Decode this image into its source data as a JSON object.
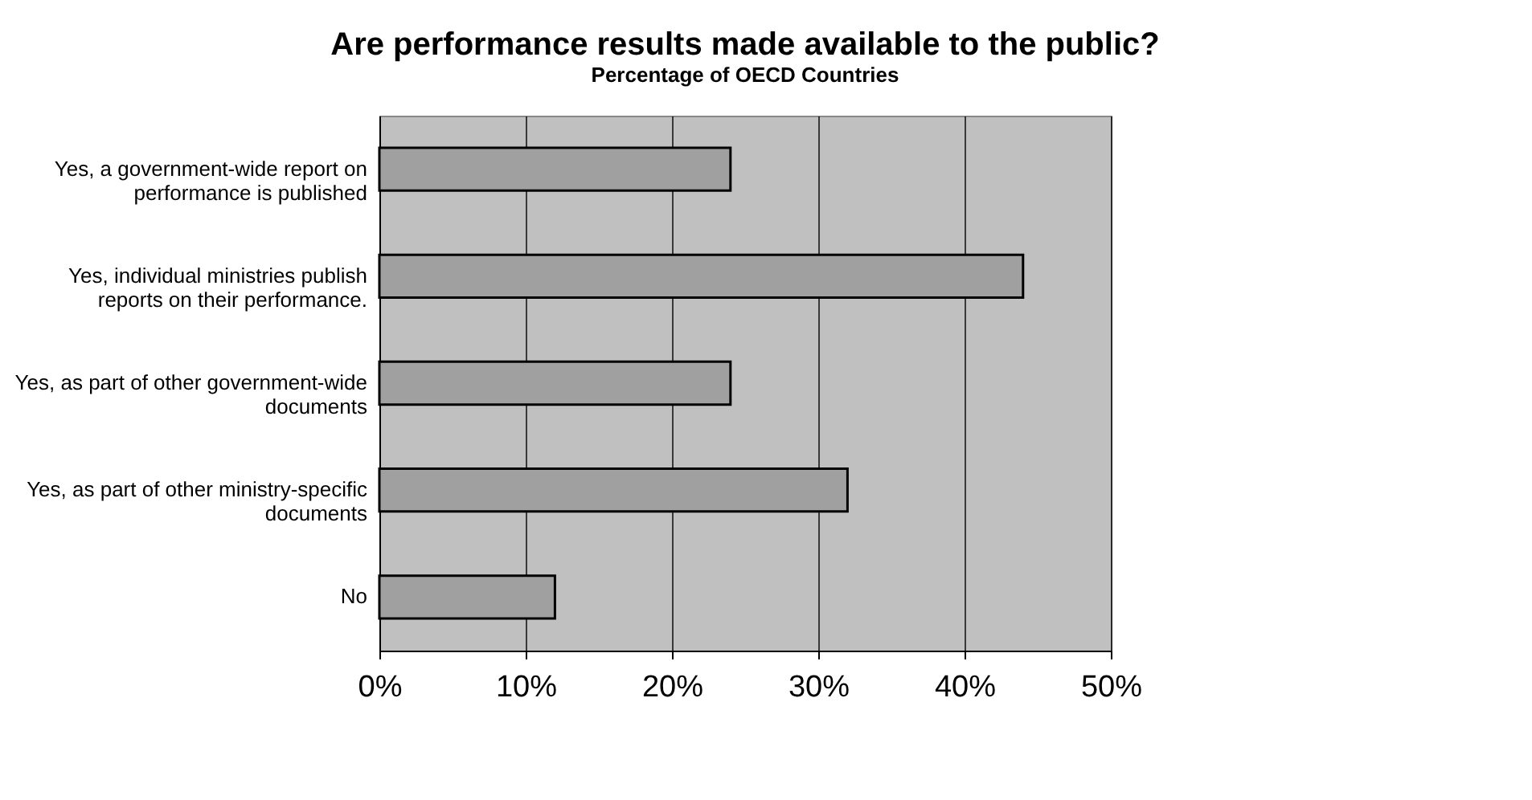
{
  "chart_data": {
    "type": "bar",
    "orientation": "horizontal",
    "title": "Are performance results made available to the public?",
    "subtitle": "Percentage of OECD Countries",
    "categories": [
      "Yes, a government-wide report on performance is published",
      "Yes, individual ministries publish reports on their performance.",
      "Yes, as part of other government-wide documents",
      "Yes, as part of other ministry-specific documents",
      "No"
    ],
    "values": [
      24,
      44,
      24,
      32,
      12
    ],
    "color": "#a0a0a0",
    "xlim": [
      0,
      50
    ],
    "xticks": [
      {
        "value": 0,
        "label": "0%"
      },
      {
        "value": 10,
        "label": "10%"
      },
      {
        "value": 20,
        "label": "20%"
      },
      {
        "value": 30,
        "label": "30%"
      },
      {
        "value": 40,
        "label": "40%"
      },
      {
        "value": 50,
        "label": "50%"
      }
    ],
    "grid": "x"
  }
}
